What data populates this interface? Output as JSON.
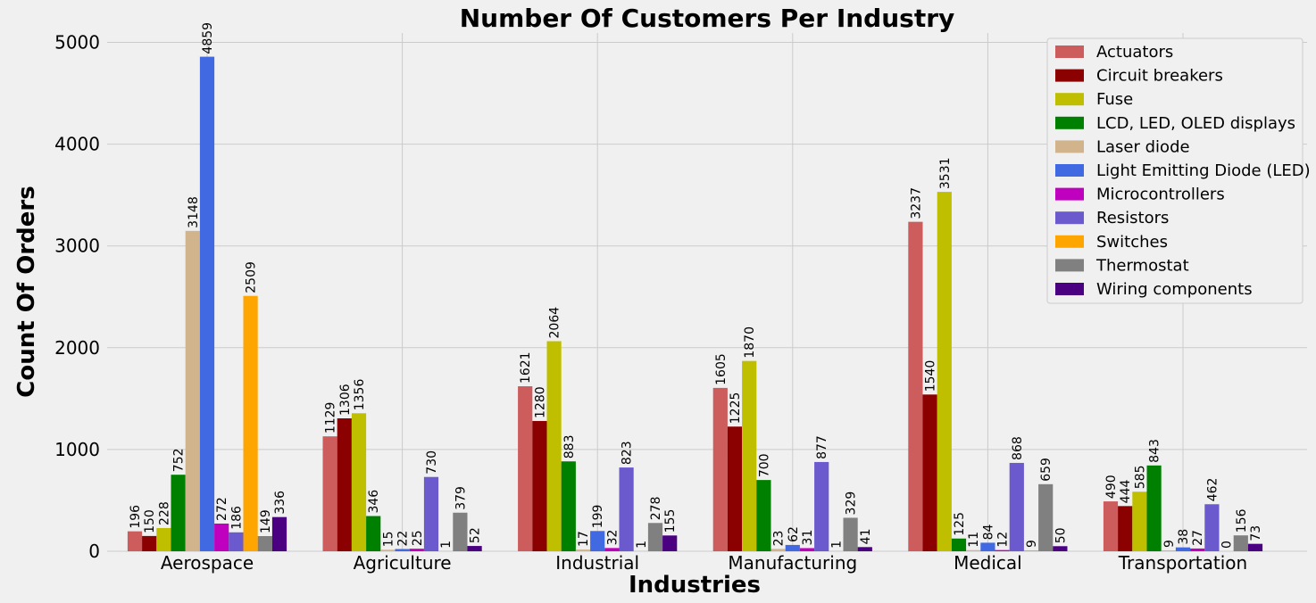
{
  "chart_data": {
    "type": "bar",
    "title": "Number Of Customers Per Industry",
    "xlabel": "Industries",
    "ylabel": "Count Of Orders",
    "ylim": [
      0,
      5100
    ],
    "yticks": [
      0,
      1000,
      2000,
      3000,
      4000,
      5000
    ],
    "grid": true,
    "legend_position": "top-right",
    "categories": [
      "Aerospace",
      "Agriculture",
      "Industrial",
      "Manufacturing",
      "Medical",
      "Transportation"
    ],
    "series": [
      {
        "name": "Actuators",
        "color": "#cd5c5c",
        "values": [
          196,
          1129,
          1621,
          1605,
          3237,
          490
        ]
      },
      {
        "name": "Circuit breakers",
        "color": "#8b0000",
        "values": [
          150,
          1306,
          1280,
          1225,
          1540,
          444
        ]
      },
      {
        "name": "Fuse",
        "color": "#bfbf00",
        "values": [
          228,
          1356,
          2064,
          1870,
          3531,
          585
        ]
      },
      {
        "name": "LCD, LED, OLED displays",
        "color": "#008000",
        "values": [
          752,
          346,
          883,
          700,
          125,
          843
        ]
      },
      {
        "name": "Laser diode",
        "color": "#d2b48c",
        "values": [
          3148,
          15,
          17,
          23,
          11,
          9
        ]
      },
      {
        "name": "Light Emitting Diode (LED)",
        "color": "#4169e1",
        "values": [
          4859,
          22,
          199,
          62,
          84,
          38
        ]
      },
      {
        "name": "Microcontrollers",
        "color": "#bf00bf",
        "values": [
          272,
          25,
          32,
          31,
          12,
          27
        ]
      },
      {
        "name": "Resistors",
        "color": "#6a5acd",
        "values": [
          186,
          730,
          823,
          877,
          868,
          462
        ]
      },
      {
        "name": "Switches",
        "color": "#ffa500",
        "values": [
          2509,
          1,
          1,
          1,
          9,
          0
        ]
      },
      {
        "name": "Thermostat",
        "color": "#808080",
        "values": [
          149,
          379,
          278,
          329,
          659,
          156
        ]
      },
      {
        "name": "Wiring components",
        "color": "#4b0082",
        "values": [
          336,
          52,
          155,
          41,
          50,
          73
        ]
      }
    ]
  }
}
